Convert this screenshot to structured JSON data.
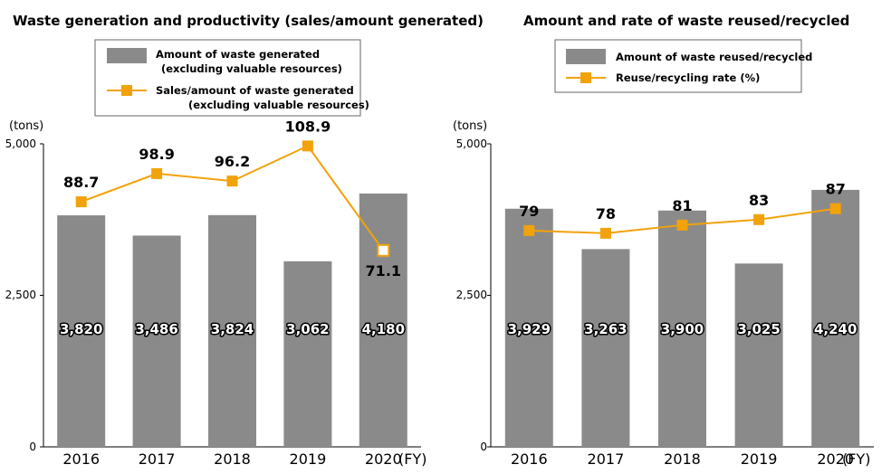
{
  "colors": {
    "bar": "#8a8a8a",
    "line": "#f2a20a",
    "axis": "#000000",
    "legend_border": "#666666"
  },
  "chart_data": [
    {
      "type": "bar+line",
      "title": "Waste generation and productivity (sales/amount generated)",
      "unit_label": "(tons)",
      "fy_label": "(FY)",
      "ylim": [
        0,
        5000
      ],
      "yticks": [
        "0",
        "2,500",
        "5,000"
      ],
      "categories": [
        "2016",
        "2017",
        "2018",
        "2019",
        "2020"
      ],
      "legend": {
        "bar_line1": "Amount of waste generated",
        "bar_line2": "(excluding valuable resources)",
        "line_line1": "Sales/amount of waste generated",
        "line_line2": "(excluding valuable resources)"
      },
      "bar_series": {
        "name": "Amount of waste generated (excluding valuable resources)",
        "values": [
          3820,
          3486,
          3824,
          3062,
          4180
        ],
        "labels": [
          "3,820",
          "3,486",
          "3,824",
          "3,062",
          "4,180"
        ]
      },
      "line_series": {
        "name": "Sales/amount of waste generated (excluding valuable resources)",
        "values": [
          88.7,
          98.9,
          96.2,
          108.9,
          71.1
        ],
        "labels": [
          "88.7",
          "98.9",
          "96.2",
          "108.9",
          "71.1"
        ],
        "plot_range": [
          0,
          110
        ]
      }
    },
    {
      "type": "bar+line",
      "title": "Amount and rate of waste reused/recycled",
      "unit_label": "(tons)",
      "fy_label": "(FY)",
      "ylim": [
        0,
        5000
      ],
      "yticks": [
        "0",
        "2,500",
        "5,000"
      ],
      "categories": [
        "2016",
        "2017",
        "2018",
        "2019",
        "2020"
      ],
      "legend": {
        "bar_line1": "Amount of waste reused/recycled",
        "line_line1": "Reuse/recycling rate (%)"
      },
      "bar_series": {
        "name": "Amount of waste reused/recycled",
        "values": [
          3929,
          3263,
          3900,
          3025,
          4240
        ],
        "labels": [
          "3,929",
          "3,263",
          "3,900",
          "3,025",
          "4,240"
        ]
      },
      "line_series": {
        "name": "Reuse/recycling rate (%)",
        "values": [
          79,
          78,
          81,
          83,
          87
        ],
        "labels": [
          "79",
          "78",
          "81",
          "83",
          "87"
        ],
        "plot_range": [
          0,
          111
        ]
      }
    }
  ]
}
